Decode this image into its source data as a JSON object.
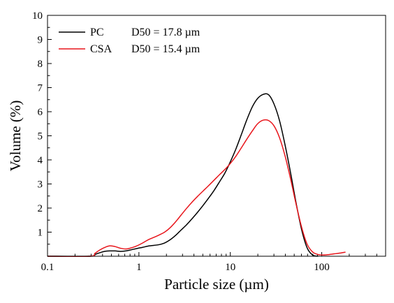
{
  "chart_data": {
    "type": "line",
    "xlabel": "Particle size (µm)",
    "ylabel": "Volume (%)",
    "xscale": "log",
    "xlim": [
      0.1,
      500
    ],
    "ylim": [
      0,
      10
    ],
    "x_ticks": [
      {
        "value": 0.1,
        "label": "0.1"
      },
      {
        "value": 1,
        "label": "1"
      },
      {
        "value": 10,
        "label": "10"
      },
      {
        "value": 100,
        "label": "100"
      }
    ],
    "y_ticks": [
      {
        "value": 1,
        "label": "1"
      },
      {
        "value": 2,
        "label": "2"
      },
      {
        "value": 3,
        "label": "3"
      },
      {
        "value": 4,
        "label": "4"
      },
      {
        "value": 5,
        "label": "5"
      },
      {
        "value": 6,
        "label": "6"
      },
      {
        "value": 7,
        "label": "7"
      },
      {
        "value": 8,
        "label": "8"
      },
      {
        "value": 9,
        "label": "9"
      },
      {
        "value": 10,
        "label": "10"
      }
    ],
    "grid": false,
    "legend_position": "top-left",
    "series": [
      {
        "name": "PC",
        "annotation": "D50 = 17.8 µm",
        "color": "#000000",
        "x": [
          0.1,
          0.29,
          0.33,
          0.37,
          0.42,
          0.48,
          0.55,
          0.63,
          0.72,
          0.83,
          0.95,
          1.1,
          1.26,
          1.45,
          1.66,
          1.91,
          2.19,
          2.51,
          2.88,
          3.31,
          3.8,
          4.37,
          5.01,
          5.75,
          6.61,
          7.59,
          8.71,
          10.0,
          11.5,
          13.2,
          15.1,
          17.4,
          19.9,
          22.9,
          26.3,
          30.2,
          34.7,
          39.8,
          45.7,
          52.5,
          60.3,
          69.2,
          79.4,
          91.2
        ],
        "y": [
          0.0,
          0.0,
          0.07,
          0.14,
          0.2,
          0.22,
          0.22,
          0.2,
          0.22,
          0.27,
          0.32,
          0.37,
          0.42,
          0.45,
          0.48,
          0.55,
          0.68,
          0.86,
          1.08,
          1.3,
          1.55,
          1.82,
          2.1,
          2.4,
          2.72,
          3.08,
          3.45,
          3.92,
          4.45,
          5.05,
          5.65,
          6.2,
          6.55,
          6.72,
          6.7,
          6.3,
          5.6,
          4.6,
          3.45,
          2.2,
          1.1,
          0.35,
          0.05,
          0.0
        ]
      },
      {
        "name": "CSA",
        "annotation": "D50 = 15.4 µm",
        "color": "#e8151b",
        "x": [
          0.1,
          0.29,
          0.33,
          0.37,
          0.42,
          0.48,
          0.55,
          0.63,
          0.72,
          0.83,
          0.95,
          1.1,
          1.26,
          1.45,
          1.66,
          1.91,
          2.19,
          2.51,
          2.88,
          3.31,
          3.8,
          4.37,
          5.01,
          5.75,
          6.61,
          7.59,
          8.71,
          10.0,
          11.5,
          13.2,
          15.1,
          17.4,
          19.9,
          22.9,
          26.3,
          30.2,
          34.7,
          39.8,
          45.7,
          52.5,
          60.3,
          69.2,
          79.4,
          91.2,
          105,
          120,
          138,
          158,
          182
        ],
        "y": [
          0.0,
          0.0,
          0.12,
          0.25,
          0.36,
          0.43,
          0.4,
          0.33,
          0.3,
          0.35,
          0.43,
          0.55,
          0.68,
          0.78,
          0.88,
          1.0,
          1.18,
          1.42,
          1.7,
          1.98,
          2.24,
          2.48,
          2.7,
          2.92,
          3.15,
          3.38,
          3.6,
          3.85,
          4.15,
          4.5,
          4.85,
          5.2,
          5.5,
          5.65,
          5.63,
          5.4,
          4.9,
          4.15,
          3.2,
          2.15,
          1.2,
          0.5,
          0.18,
          0.07,
          0.05,
          0.07,
          0.1,
          0.13,
          0.17
        ]
      }
    ]
  }
}
